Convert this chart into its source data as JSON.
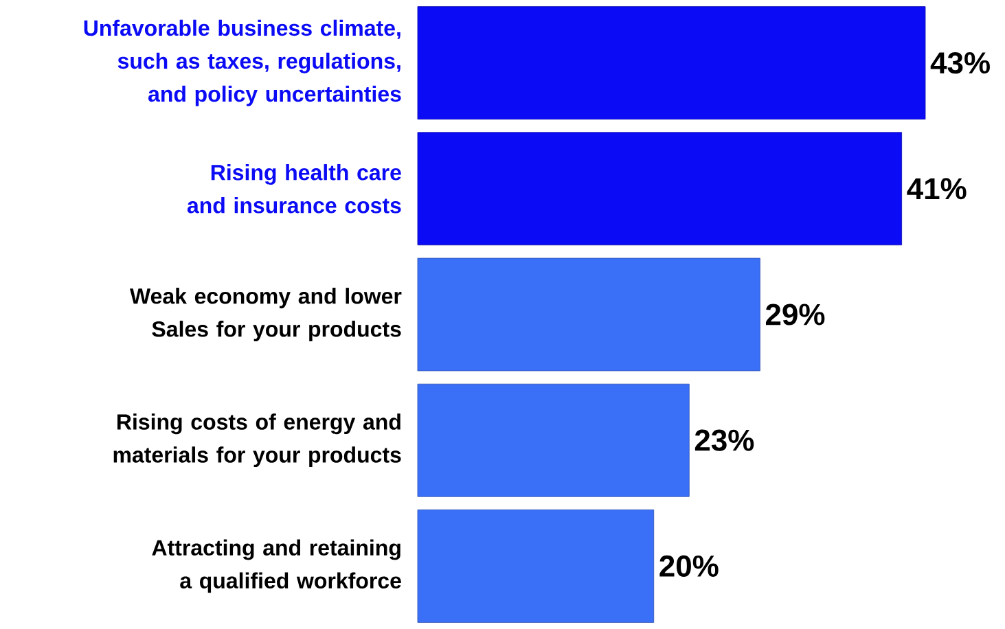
{
  "chart_data": {
    "type": "bar",
    "orientation": "horizontal",
    "categories": [
      "Unfavorable business climate, such as taxes, regulations, and policy uncertainties",
      "Rising health care and insurance costs",
      "Weak economy and lower Sales for your products",
      "Rising costs of energy and materials for your products",
      "Attracting and retaining a qualified workforce"
    ],
    "values": [
      43,
      41,
      29,
      23,
      20
    ],
    "value_labels": [
      "43%",
      "41%",
      "29%",
      "23%",
      "20%"
    ],
    "colors": [
      "#0b0bf5",
      "#0b0bf5",
      "#3a6ff7",
      "#3a6ff7",
      "#3a6ff7"
    ]
  }
}
